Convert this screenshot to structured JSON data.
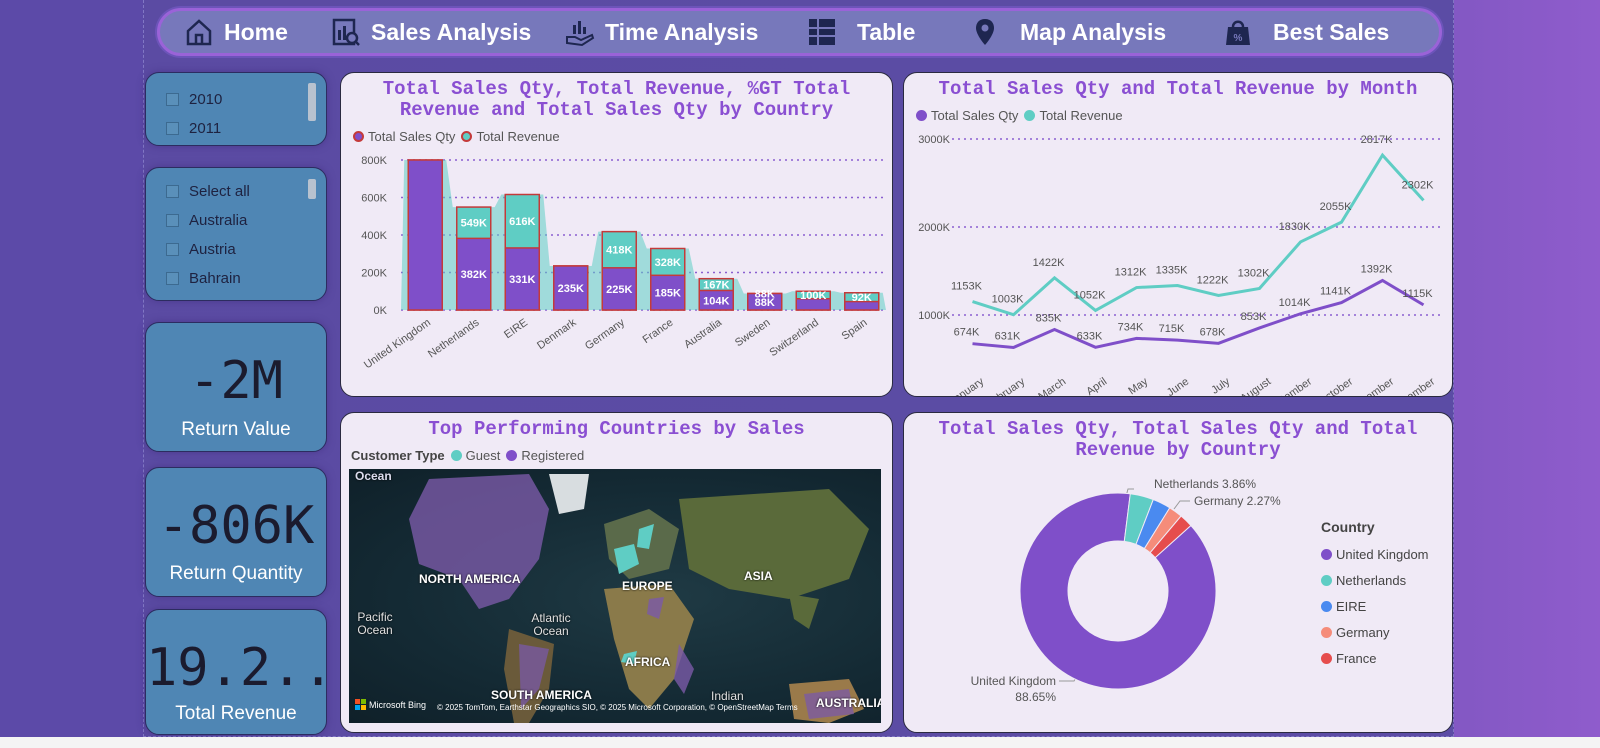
{
  "nav": [
    {
      "label": "Home",
      "icon": "home-icon"
    },
    {
      "label": "Sales Analysis",
      "icon": "report-icon"
    },
    {
      "label": "Time Analysis",
      "icon": "hand-chart-icon"
    },
    {
      "label": "Table",
      "icon": "table-icon"
    },
    {
      "label": "Map Analysis",
      "icon": "map-pin-icon"
    },
    {
      "label": "Best Sales",
      "icon": "discount-bag-icon"
    }
  ],
  "year_slicer": {
    "items": [
      "2010",
      "2011"
    ]
  },
  "country_slicer": {
    "items": [
      "Select all",
      "Australia",
      "Austria",
      "Bahrain"
    ]
  },
  "kpis": [
    {
      "value": "-2M",
      "label": "Return Value"
    },
    {
      "value": "-806K",
      "label": "Return Quantity"
    },
    {
      "value": "19.2...",
      "label": "Total Revenue"
    }
  ],
  "colors": {
    "purple": "#7f4fc9",
    "teal": "#5fcdc4",
    "blue": "#4a8af0",
    "salmon": "#f58c7a",
    "red": "#e64d4d"
  },
  "bar_card": {
    "title": "Total Sales Qty, Total Revenue, %GT Total Revenue and Total Sales Qty by Country",
    "legend": [
      "Total Sales Qty",
      "Total Revenue"
    ]
  },
  "line_card": {
    "title": "Total Sales Qty and Total Revenue by Month",
    "legend": [
      "Total Sales Qty",
      "Total Revenue"
    ]
  },
  "map_card": {
    "title": "Top Performing Countries by Sales",
    "legend_title": "Customer Type",
    "legend": [
      "Guest",
      "Registered"
    ],
    "labels": {
      "ocean_tl": "Ocean",
      "north_america": "NORTH AMERICA",
      "europe": "EUROPE",
      "asia": "ASIA",
      "atlantic": "Atlantic Ocean",
      "pacific": "Pacific Ocean",
      "africa": "AFRICA",
      "south_america": "SOUTH AMERICA",
      "indian": "Indian",
      "australia": "AUSTRALIA"
    },
    "attribution": "© 2025 TomTom, Earthstar Geographics SIO, © 2025 Microsoft Corporation, © OpenStreetMap  Terms",
    "bing": "Microsoft Bing"
  },
  "donut_card": {
    "title": "Total Sales Qty, Total Sales Qty and Total Revenue by Country",
    "legend_title": "Country",
    "callouts": {
      "nl": "Netherlands 3.86%",
      "de": "Germany 2.27%",
      "uk_name": "United Kingdom",
      "uk_pct": "88.65%"
    }
  },
  "chart_data": [
    {
      "type": "bar",
      "title": "Total Sales Qty, Total Revenue, %GT Total Revenue and Total Sales Qty by Country",
      "categories": [
        "United Kingdom",
        "Netherlands",
        "EIRE",
        "Denmark",
        "Germany",
        "France",
        "Australia",
        "Sweden",
        "Switzerland",
        "Spain"
      ],
      "series": [
        {
          "name": "Total Sales Qty",
          "values": [
            800,
            382,
            331,
            235,
            225,
            185,
            104,
            88,
            60,
            45
          ],
          "labels": [
            "",
            "382K",
            "331K",
            "235K",
            "225K",
            "185K",
            "104K",
            "88K",
            "",
            ""
          ]
        },
        {
          "name": "Total Revenue",
          "values": [
            800,
            549,
            616,
            60,
            418,
            328,
            167,
            88,
            100,
            92
          ],
          "labels": [
            "",
            "549K",
            "616K",
            "",
            "418K",
            "328K",
            "167K",
            "88K",
            "100K",
            "92K"
          ]
        }
      ],
      "yticks": [
        "0K",
        "200K",
        "400K",
        "600K",
        "800K"
      ],
      "ylim": [
        0,
        800
      ]
    },
    {
      "type": "line",
      "title": "Total Sales Qty and Total Revenue by Month",
      "categories": [
        "January",
        "February",
        "March",
        "April",
        "May",
        "June",
        "July",
        "August",
        "September",
        "October",
        "November",
        "December"
      ],
      "series": [
        {
          "name": "Total Sales Qty",
          "values": [
            674,
            631,
            835,
            633,
            734,
            715,
            678,
            853,
            1014,
            1141,
            1392,
            1115
          ],
          "labels": [
            "674K",
            "631K",
            "835K",
            "633K",
            "734K",
            "715K",
            "678K",
            "853K",
            "1014K",
            "1141K",
            "1392K",
            "1115K"
          ]
        },
        {
          "name": "Total Revenue",
          "values": [
            1153,
            1003,
            1422,
            1052,
            1312,
            1335,
            1222,
            1302,
            1830,
            2055,
            2817,
            2302
          ],
          "labels": [
            "1153K",
            "1003K",
            "1422K",
            "1052K",
            "1312K",
            "1335K",
            "1222K",
            "1302K",
            "1830K",
            "2055K",
            "2817K",
            "2302K"
          ]
        }
      ],
      "yticks": [
        "1000K",
        "2000K",
        "3000K"
      ],
      "ylim": [
        500,
        3000
      ]
    },
    {
      "type": "pie",
      "title": "Total Sales Qty, Total Sales Qty and Total Revenue by Country",
      "categories": [
        "United Kingdom",
        "Netherlands",
        "EIRE",
        "Germany",
        "France"
      ],
      "values": [
        88.65,
        3.86,
        3.0,
        2.27,
        2.22
      ]
    }
  ]
}
